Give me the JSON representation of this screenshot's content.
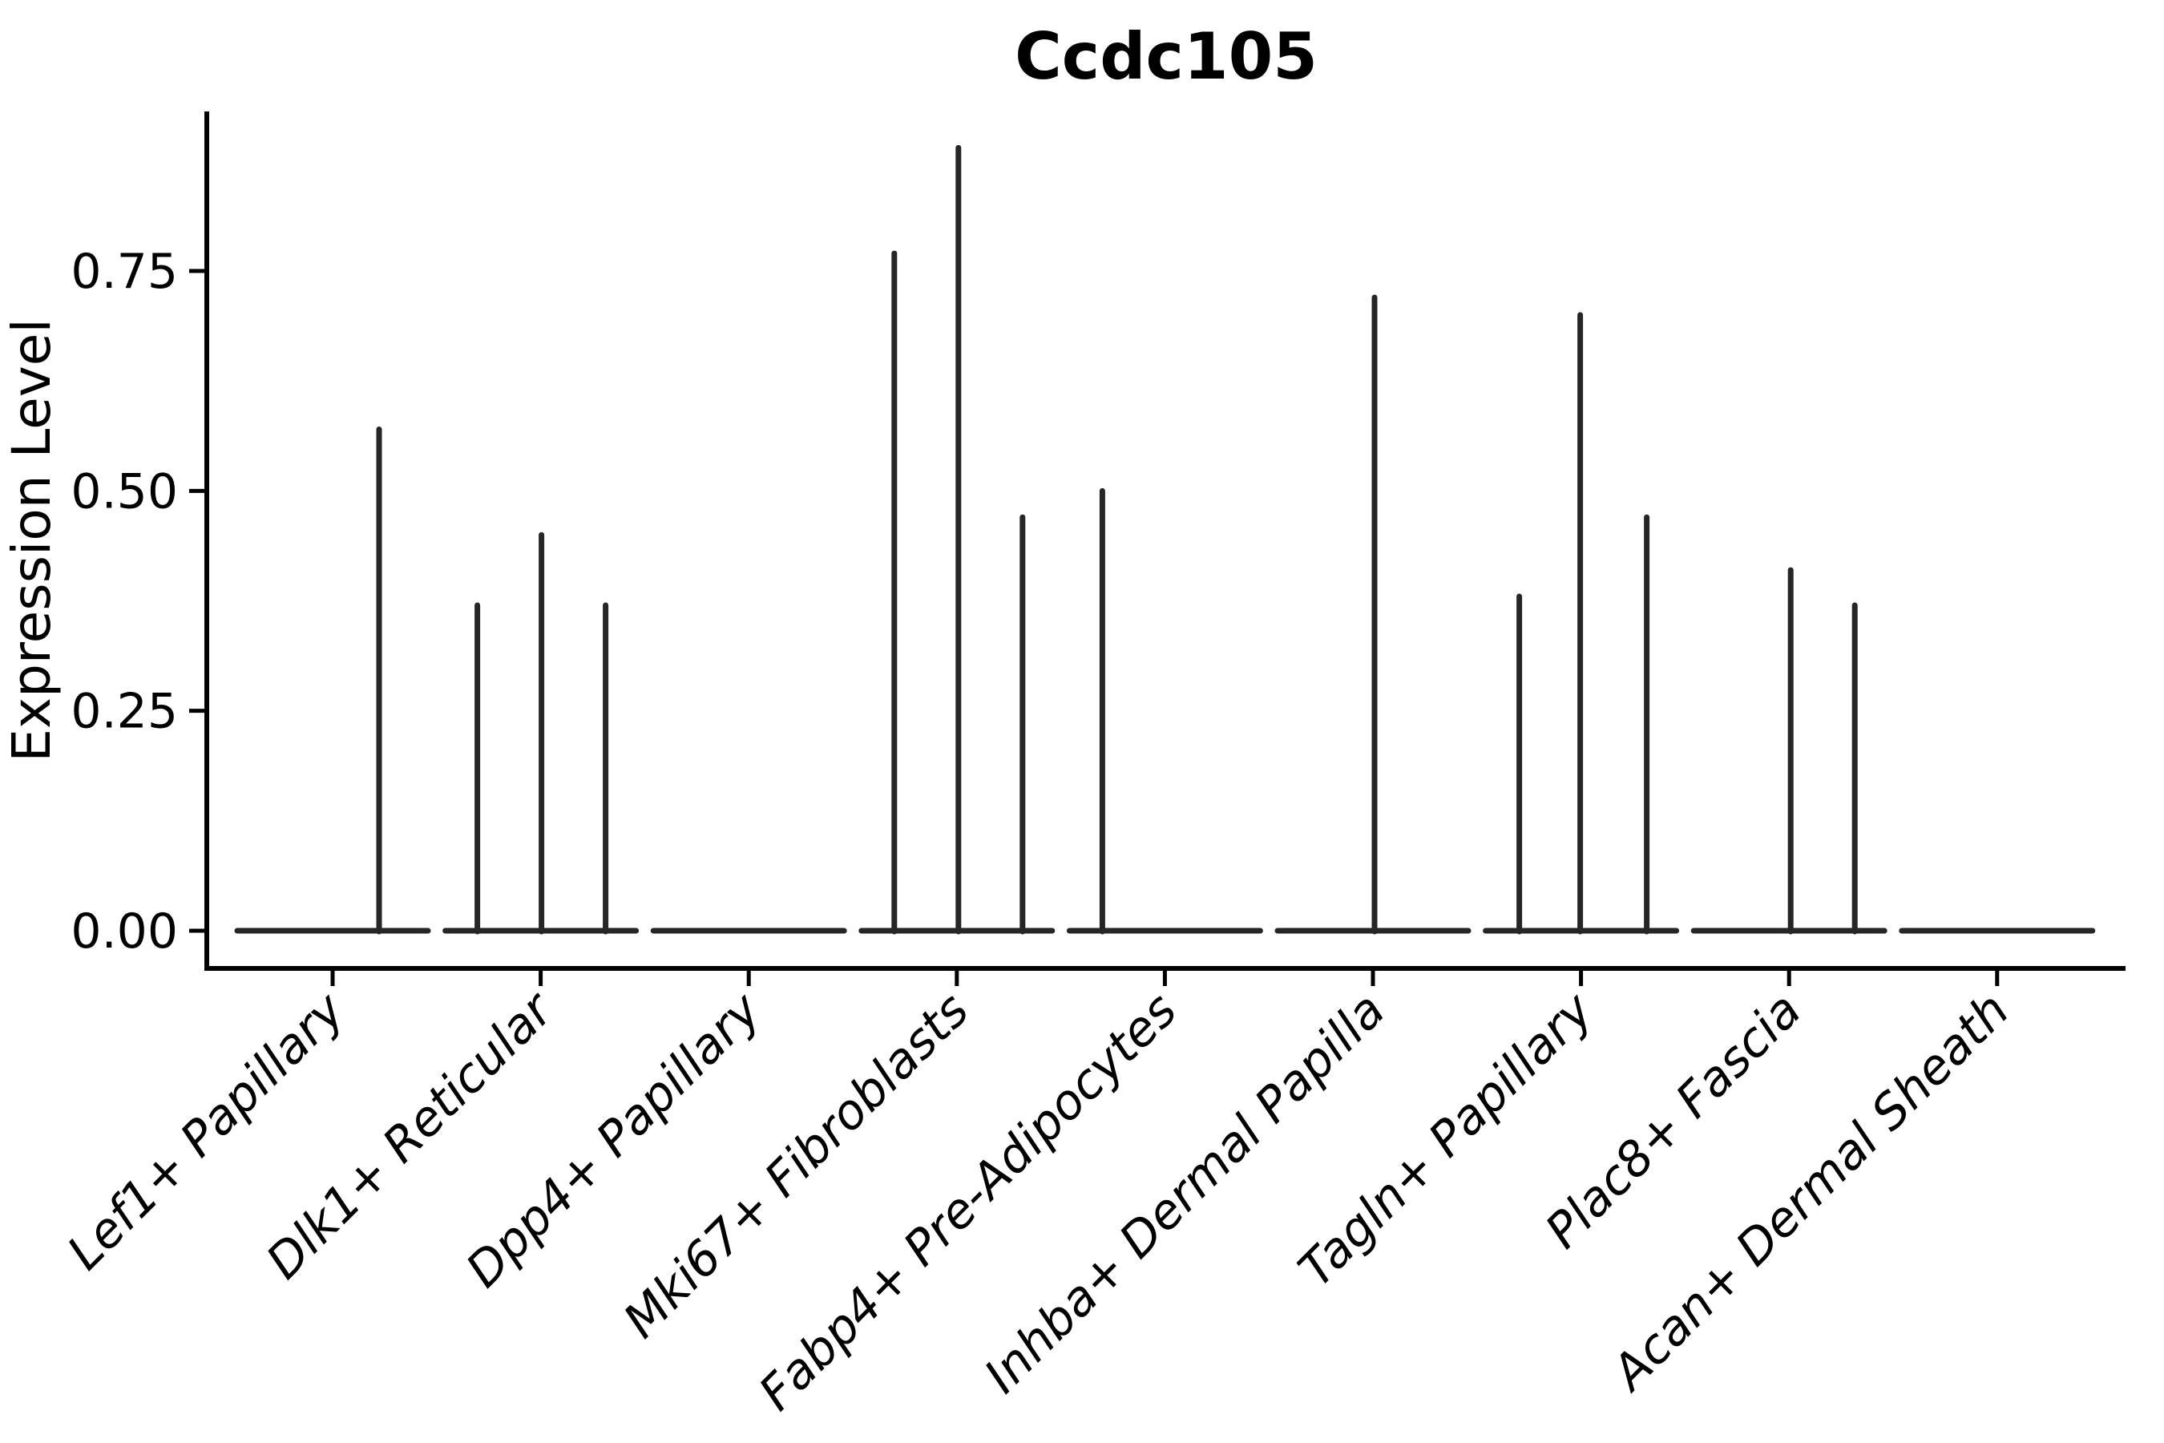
{
  "figure": {
    "title": "Ccdc105",
    "ylabel": "Expression Level",
    "background": "#ffffff"
  },
  "colors": {
    "violin_line": "#262626",
    "axis": "#000000",
    "text": "#000000",
    "background": "#ffffff"
  },
  "chart_data": {
    "type": "violin",
    "title": "Ccdc105",
    "xlabel": "",
    "ylabel": "Expression Level",
    "grid": false,
    "legend": "none",
    "ylim": [
      -0.04,
      0.93
    ],
    "y_ticks": [
      {
        "label": "0.00",
        "value": 0.0
      },
      {
        "label": "0.25",
        "value": 0.25
      },
      {
        "label": "0.50",
        "value": 0.5
      },
      {
        "label": "0.75",
        "value": 0.75
      }
    ],
    "x_tick_rotation_deg": 45,
    "note": "Each category shows a flat zero-expression baseline; thin vertical spikes mark cells with nonzero expression. dx = horizontal spike offset in px from category center.",
    "series": [
      {
        "category": "Lef1+ Papillary",
        "baseline_value": 0.0,
        "spikes": [
          {
            "value": 0.57,
            "dx": 58
          }
        ]
      },
      {
        "category": "Dlk1+ Reticular",
        "baseline_value": 0.0,
        "spikes": [
          {
            "value": 0.37,
            "dx": -79
          },
          {
            "value": 0.45,
            "dx": 1
          },
          {
            "value": 0.37,
            "dx": 81
          }
        ]
      },
      {
        "category": "Dpp4+ Papillary",
        "baseline_value": 0.0,
        "spikes": []
      },
      {
        "category": "Mki67+ Fibroblasts",
        "baseline_value": 0.0,
        "spikes": [
          {
            "value": 0.77,
            "dx": -78
          },
          {
            "value": 0.89,
            "dx": 2
          },
          {
            "value": 0.47,
            "dx": 82
          }
        ]
      },
      {
        "category": "Fabp4+ Pre-Adipocytes",
        "baseline_value": 0.0,
        "spikes": [
          {
            "value": 0.5,
            "dx": -78
          }
        ]
      },
      {
        "category": "Inhba+ Dermal Papilla",
        "baseline_value": 0.0,
        "spikes": [
          {
            "value": 0.72,
            "dx": 2
          }
        ]
      },
      {
        "category": "Tagln+ Papillary",
        "baseline_value": 0.0,
        "spikes": [
          {
            "value": 0.38,
            "dx": -77
          },
          {
            "value": 0.7,
            "dx": -1
          },
          {
            "value": 0.47,
            "dx": 82
          }
        ]
      },
      {
        "category": "Plac8+ Fascia",
        "baseline_value": 0.0,
        "spikes": [
          {
            "value": 0.41,
            "dx": 2
          },
          {
            "value": 0.37,
            "dx": 82
          }
        ]
      },
      {
        "category": "Acan+ Dermal Sheath",
        "baseline_value": 0.0,
        "spikes": []
      }
    ]
  }
}
